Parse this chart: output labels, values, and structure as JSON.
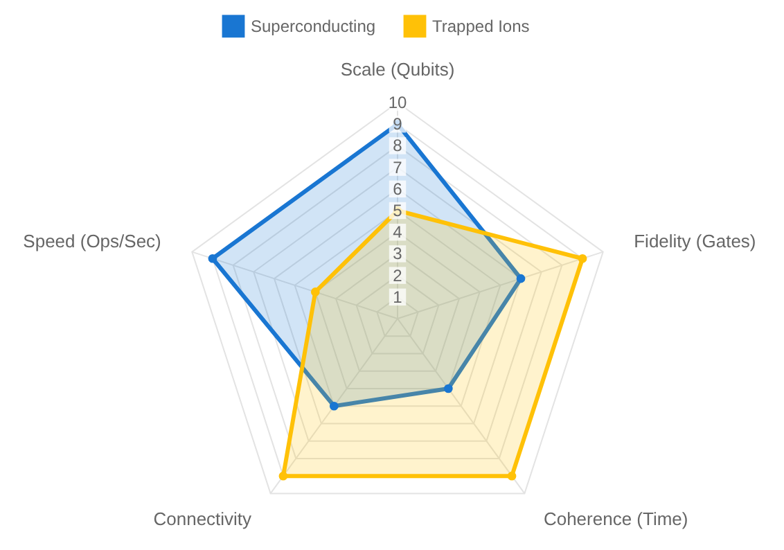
{
  "chart_data": {
    "type": "radar",
    "categories": [
      "Scale (Qubits)",
      "Fidelity (Gates)",
      "Coherence (Time)",
      "Connectivity",
      "Speed (Ops/Sec)"
    ],
    "series": [
      {
        "name": "Superconducting",
        "color": "#1976d2",
        "values": [
          9,
          6,
          4,
          5,
          9
        ]
      },
      {
        "name": "Trapped Ions",
        "color": "#ffc107",
        "values": [
          5,
          9,
          9,
          9,
          4
        ]
      }
    ],
    "ylim": [
      0,
      10
    ],
    "yticks": [
      1,
      2,
      3,
      4,
      5,
      6,
      7,
      8,
      9,
      10
    ],
    "grid": true,
    "legend": "top",
    "marker": "circle",
    "line_style": "solid"
  }
}
